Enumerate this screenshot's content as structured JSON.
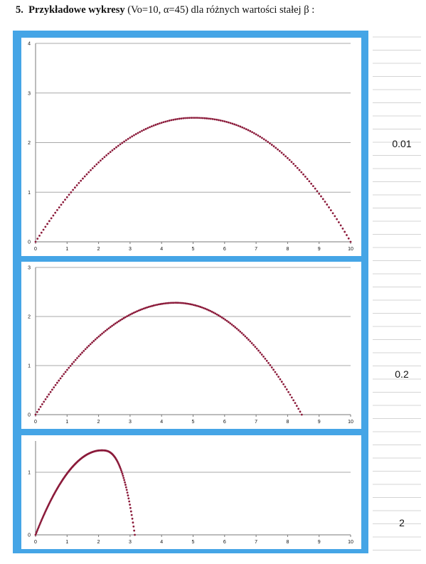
{
  "heading": {
    "number": "5.",
    "bold": "Przykładowe wykresy",
    "rest": " (Vo=10, α=45) dla różnych wartości stałej β :"
  },
  "colors": {
    "frame": "#45a5e6",
    "series": "#8b1a3a",
    "grid": "#a8a8a8"
  },
  "chart_data": [
    {
      "type": "scatter",
      "beta_label": "0.01",
      "x_ticks": [
        "0",
        "1",
        "2",
        "3",
        "4",
        "5",
        "6",
        "7",
        "8",
        "9",
        "10"
      ],
      "y_ticks": [
        "0",
        "1",
        "2",
        "3",
        "4"
      ],
      "xlim": [
        0,
        10
      ],
      "ylim": [
        0,
        4
      ],
      "series": [
        {
          "name": "β=0.01",
          "range": 10,
          "peak_x": 5.0,
          "peak_y": 2.5,
          "shape": 1.0
        }
      ]
    },
    {
      "type": "scatter",
      "beta_label": "0.2",
      "x_ticks": [
        "0",
        "1",
        "2",
        "3",
        "4",
        "5",
        "6",
        "7",
        "8",
        "9",
        "10"
      ],
      "y_ticks": [
        "0",
        "1",
        "2",
        "3"
      ],
      "xlim": [
        0,
        10
      ],
      "ylim": [
        0,
        3
      ],
      "series": [
        {
          "name": "β=0.2",
          "range": 8.45,
          "peak_x": 4.45,
          "peak_y": 2.28,
          "shape": 0.85
        }
      ]
    },
    {
      "type": "scatter",
      "beta_label": "2",
      "x_ticks": [
        "0",
        "1",
        "2",
        "3",
        "4",
        "5",
        "6",
        "7",
        "8",
        "9",
        "10"
      ],
      "y_ticks": [
        "0",
        "1"
      ],
      "xlim": [
        0,
        10
      ],
      "ylim": [
        0,
        1.5
      ],
      "series": [
        {
          "name": "β=2",
          "range": 3.15,
          "peak_x": 2.1,
          "peak_y": 1.35,
          "shape": 0.6
        }
      ]
    }
  ]
}
